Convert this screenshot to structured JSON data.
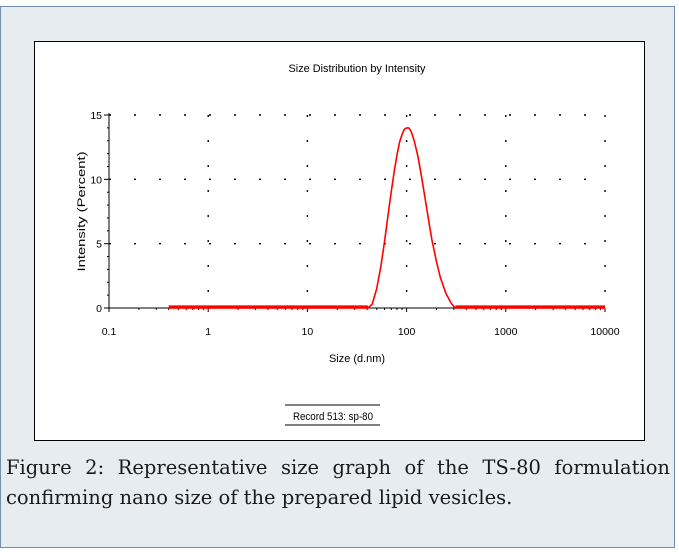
{
  "caption": "Figure 2: Representative size graph of the TS-80 formulation confirming nano size of the prepared lipid vesicles.",
  "chart_data": {
    "type": "line",
    "title": "Size Distribution by Intensity",
    "xlabel": "Size (d.nm)",
    "ylabel": "Intensity (Percent)",
    "x_scale": "log",
    "xlim": [
      0.1,
      10000
    ],
    "ylim": [
      0,
      15
    ],
    "x_ticks": [
      0.1,
      1,
      10,
      100,
      1000,
      10000
    ],
    "x_tick_labels": [
      "0.1",
      "1",
      "10",
      "100",
      "1000",
      "10000"
    ],
    "y_ticks": [
      0,
      5,
      10,
      15
    ],
    "y_tick_labels": [
      "0",
      "5",
      "10",
      "15"
    ],
    "grid": true,
    "legend_text": "Record 513: sp-80",
    "series_color": "#ff0000",
    "series": [
      {
        "x": [
          0.4,
          1,
          5,
          10,
          20,
          35,
          41,
          45,
          50,
          55,
          60,
          65,
          70,
          75,
          80,
          85,
          90,
          95,
          100,
          105,
          110,
          115,
          120,
          130,
          140,
          150,
          160,
          170,
          180,
          200,
          220,
          250,
          280,
          300,
          310,
          320,
          350,
          500,
          1000,
          5000,
          10000
        ],
        "y": [
          0,
          0,
          0,
          0,
          0,
          0,
          0,
          0.3,
          1.5,
          3.2,
          5.2,
          7.2,
          9.0,
          10.6,
          11.9,
          12.9,
          13.5,
          13.9,
          14.0,
          14.0,
          13.8,
          13.4,
          12.9,
          11.8,
          10.4,
          9.0,
          7.7,
          6.4,
          5.3,
          3.6,
          2.3,
          1.1,
          0.4,
          0.1,
          0,
          0,
          0,
          0,
          0,
          0,
          0
        ]
      }
    ]
  }
}
